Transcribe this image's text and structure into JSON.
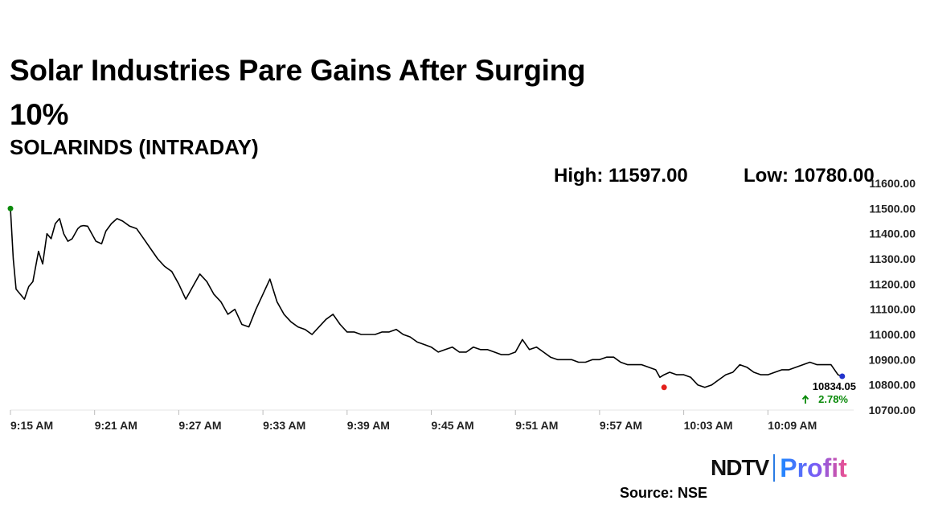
{
  "header": {
    "title": "Solar Industries Pare Gains After Surging 10%",
    "subtitle": "SOLARINDS (INTRADAY)",
    "high_label": "High: 11597.00",
    "low_label": "Low: 10780.00"
  },
  "footer": {
    "logo_ndtv": "NDTV",
    "logo_profit": "Profit",
    "source": "Source: NSE"
  },
  "colors": {
    "line": "#000000",
    "open_marker": "#0a8a0a",
    "low_marker": "#e3201b",
    "last_marker": "#2233cc",
    "change_up": "#0a8a0a"
  },
  "chart_data": {
    "type": "line",
    "ytick_labels": [
      "11600.00",
      "11500.00",
      "11400.00",
      "11300.00",
      "11200.00",
      "11100.00",
      "11000.00",
      "10900.00",
      "10800.00",
      "10700.00"
    ],
    "xtick_labels": [
      "9:15 AM",
      "9:21 AM",
      "9:27 AM",
      "9:33 AM",
      "9:39 AM",
      "9:45 AM",
      "9:51 AM",
      "9:57 AM",
      "10:03 AM",
      "10:09 AM"
    ],
    "ylim": [
      10700,
      11600
    ],
    "xlim_minutes": [
      0,
      60
    ],
    "last_value_label": "10834.05",
    "change_label": "2.78%",
    "series": [
      {
        "x": [
          0.0,
          0.2,
          0.4,
          0.7,
          1.0,
          1.3,
          1.6,
          2.0,
          2.3,
          2.6,
          2.9,
          3.2,
          3.5,
          3.8,
          4.1,
          4.4,
          4.8,
          5.0,
          5.2,
          5.5,
          5.8,
          6.1,
          6.5,
          6.8,
          7.2,
          7.6,
          8.0,
          8.5,
          9.0,
          9.5,
          10.0,
          10.5,
          11.0,
          11.5,
          12.0,
          12.5,
          13.0,
          13.5,
          14.0,
          14.5,
          15.0,
          15.5,
          16.0,
          16.5,
          17.0,
          17.5,
          18.0,
          18.5,
          19.0,
          19.5,
          20.0,
          20.5,
          21.0,
          21.5,
          22.0,
          22.5,
          23.0,
          23.5,
          24.0,
          24.5,
          25.0,
          25.5,
          26.0,
          26.5,
          27.0,
          27.5,
          28.0,
          28.5,
          29.0,
          29.5,
          30.0,
          30.5,
          31.0,
          31.5,
          32.0,
          32.5,
          33.0,
          33.5,
          34.0,
          34.5,
          35.0,
          35.5,
          36.0,
          36.5,
          37.0,
          37.5,
          38.0,
          38.5,
          39.0,
          39.5,
          40.0,
          40.5,
          41.0,
          41.5,
          42.0,
          42.5,
          43.0,
          43.5,
          44.0,
          44.5,
          45.0,
          45.5,
          46.0,
          46.3,
          46.6,
          47.0,
          47.5,
          48.0,
          48.5,
          49.0,
          49.5,
          50.0,
          50.5,
          51.0,
          51.5,
          52.0,
          52.5,
          53.0,
          53.5,
          54.0,
          54.5,
          55.0,
          55.5,
          56.0,
          56.5,
          57.0,
          57.5,
          58.0,
          58.5,
          59.0,
          59.3
        ],
        "y": [
          11500,
          11300,
          11180,
          11160,
          11140,
          11190,
          11210,
          11330,
          11280,
          11400,
          11380,
          11440,
          11460,
          11400,
          11370,
          11380,
          11420,
          11430,
          11432,
          11430,
          11400,
          11370,
          11360,
          11410,
          11440,
          11460,
          11450,
          11430,
          11420,
          11380,
          11340,
          11300,
          11270,
          11250,
          11200,
          11140,
          11190,
          11240,
          11210,
          11160,
          11130,
          11080,
          11100,
          11040,
          11030,
          11100,
          11160,
          11220,
          11130,
          11080,
          11050,
          11030,
          11020,
          11000,
          11030,
          11060,
          11080,
          11040,
          11010,
          11010,
          11000,
          11000,
          11000,
          11010,
          11010,
          11020,
          11000,
          10990,
          10970,
          10960,
          10950,
          10930,
          10940,
          10950,
          10930,
          10930,
          10950,
          10940,
          10940,
          10930,
          10920,
          10920,
          10930,
          10980,
          10940,
          10950,
          10930,
          10910,
          10900,
          10900,
          10900,
          10890,
          10890,
          10900,
          10900,
          10910,
          10910,
          10890,
          10880,
          10880,
          10880,
          10870,
          10860,
          10830,
          10840,
          10850,
          10840,
          10840,
          10830,
          10800,
          10790,
          10800,
          10820,
          10840,
          10850,
          10880,
          10870,
          10850,
          10840,
          10840,
          10850,
          10860,
          10860,
          10870,
          10880,
          10890,
          10880,
          10880,
          10880,
          10840,
          10834
        ]
      }
    ],
    "markers": {
      "open": {
        "x": 0.0,
        "y": 11500
      },
      "low": {
        "x": 46.6,
        "y": 10790
      },
      "last": {
        "x": 59.3,
        "y": 10834
      }
    }
  }
}
